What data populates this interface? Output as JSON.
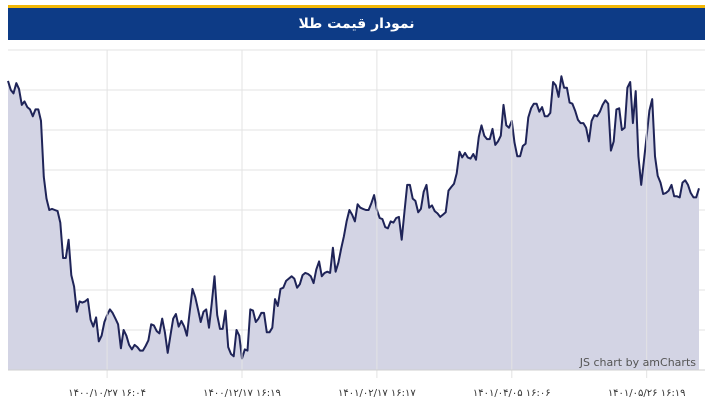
{
  "header": {
    "title": "نمودار قیمت طلا"
  },
  "colors": {
    "header_bg": "#0d3b86",
    "accent_stripe": "#f2b705",
    "line": "#1f2458",
    "fill": "#d3d4e4",
    "grid": "#e3e3e3"
  },
  "watermark": "JS chart by amCharts",
  "chart_data": {
    "type": "area",
    "title": "نمودار قیمت طلا",
    "xlabel": "",
    "ylabel": "",
    "grid": true,
    "y_axis_labels_visible": false,
    "x_ticks": [
      {
        "index": 36,
        "label": "۱۴۰۰/۱۰/۲۷ ۱۶:۰۴"
      },
      {
        "index": 85,
        "label": "۱۴۰۰/۱۲/۱۷ ۱۶:۱۹"
      },
      {
        "index": 134,
        "label": "۱۴۰۱/۰۲/۱۷ ۱۶:۱۷"
      },
      {
        "index": 183,
        "label": "۱۴۰۱/۰۴/۰۵ ۱۶:۰۶"
      },
      {
        "index": 232,
        "label": "۱۴۰۱/۰۵/۲۶ ۱۶:۱۹"
      }
    ],
    "values": [
      259,
      251,
      251,
      255,
      262,
      266,
      264,
      251,
      252,
      252,
      262,
      257,
      255,
      254,
      264,
      270,
      287,
      337,
      327,
      305,
      283,
      262,
      287,
      344,
      316,
      352,
      347,
      312,
      310,
      329,
      328,
      300,
      292,
      333,
      336,
      332,
      326,
      322,
      323,
      318,
      300,
      312,
      316,
      316,
      319,
      327,
      333,
      334,
      347,
      347,
      357,
      339,
      349,
      352,
      325,
      322,
      322,
      330,
      326,
      333,
      333,
      329,
      321,
      298,
      296,
      287,
      287,
      299,
      318,
      312,
      314,
      332,
      305,
      300,
      297,
      311,
      302,
      302,
      305,
      314,
      304,
      284,
      289,
      285,
      286,
      290,
      286,
      291,
      272,
      263,
      260,
      257,
      238,
      236,
      234,
      237,
      239,
      244,
      242,
      262,
      256,
      241,
      238,
      248,
      250,
      262,
      262,
      238,
      214,
      234,
      233,
      229,
      230,
      224,
      225,
      232,
      233,
      240,
      253,
      246,
      240,
      240,
      241,
      242,
      245,
      230,
      236,
      240,
      230,
      217,
      206,
      194,
      186,
      207,
      185,
      186,
      185,
      182,
      195,
      188,
      176,
      182,
      184,
      185,
      183,
      175,
      172,
      180,
      182,
      180,
      178,
      172,
      171,
      156,
      162,
      137,
      133,
      133,
      150,
      150,
      145,
      142,
      152,
      153,
      117,
      118,
      110,
      130,
      135,
      112,
      114,
      120,
      152,
      136,
      136,
      148,
      182,
      158,
      137,
      153,
      151,
      142,
      153,
      164,
      171,
      151,
      130,
      138,
      143,
      138,
      149,
      145,
      130,
      115,
      133,
      145,
      132,
      134,
      139,
      140,
      126,
      121,
      117,
      117,
      120,
      122,
      118,
      122,
      130,
      135,
      119,
      140,
      145,
      150,
      153,
      148,
      142,
      130,
      125,
      146,
      138,
      144,
      162,
      160,
      159,
      160,
      151,
      173,
      183,
      214,
      198,
      198,
      229,
      239,
      240,
      241,
      240,
      250,
      269,
      318,
      328,
      328,
      322,
      328,
      330,
      335,
      332,
      346,
      351,
      342,
      345,
      353
    ]
  }
}
